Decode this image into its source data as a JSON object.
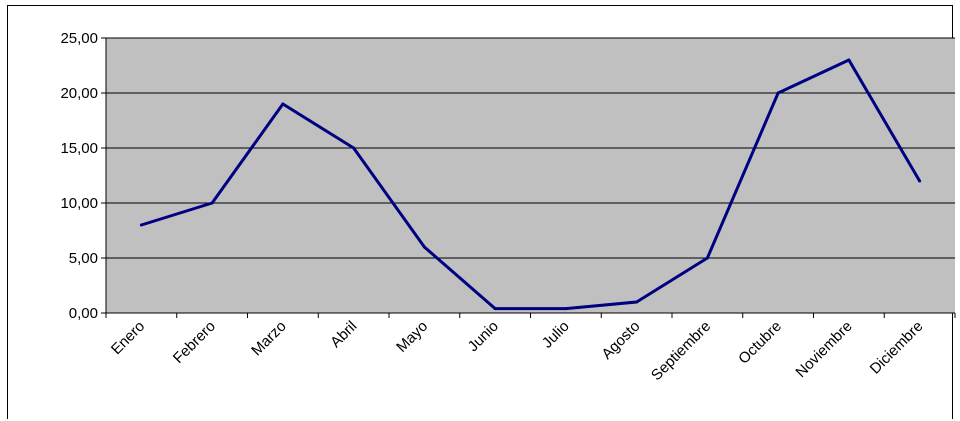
{
  "chart_data": {
    "type": "line",
    "categories": [
      "Enero",
      "Febrero",
      "Marzo",
      "Abril",
      "Mayo",
      "Junio",
      "Julio",
      "Agosto",
      "Septiembre",
      "Octubre",
      "Noviembre",
      "Diciembre"
    ],
    "series": [
      {
        "values": [
          8,
          10,
          19,
          15,
          6,
          0.4,
          0.4,
          1,
          5,
          20,
          23,
          12
        ]
      }
    ],
    "y_ticks": [
      "0,00",
      "5,00",
      "10,00",
      "15,00",
      "20,00",
      "25,00"
    ],
    "ylim": [
      0,
      25
    ],
    "grid": true,
    "plot_background": "#c0c0c0",
    "line_color": "#000080",
    "legend": "none"
  }
}
